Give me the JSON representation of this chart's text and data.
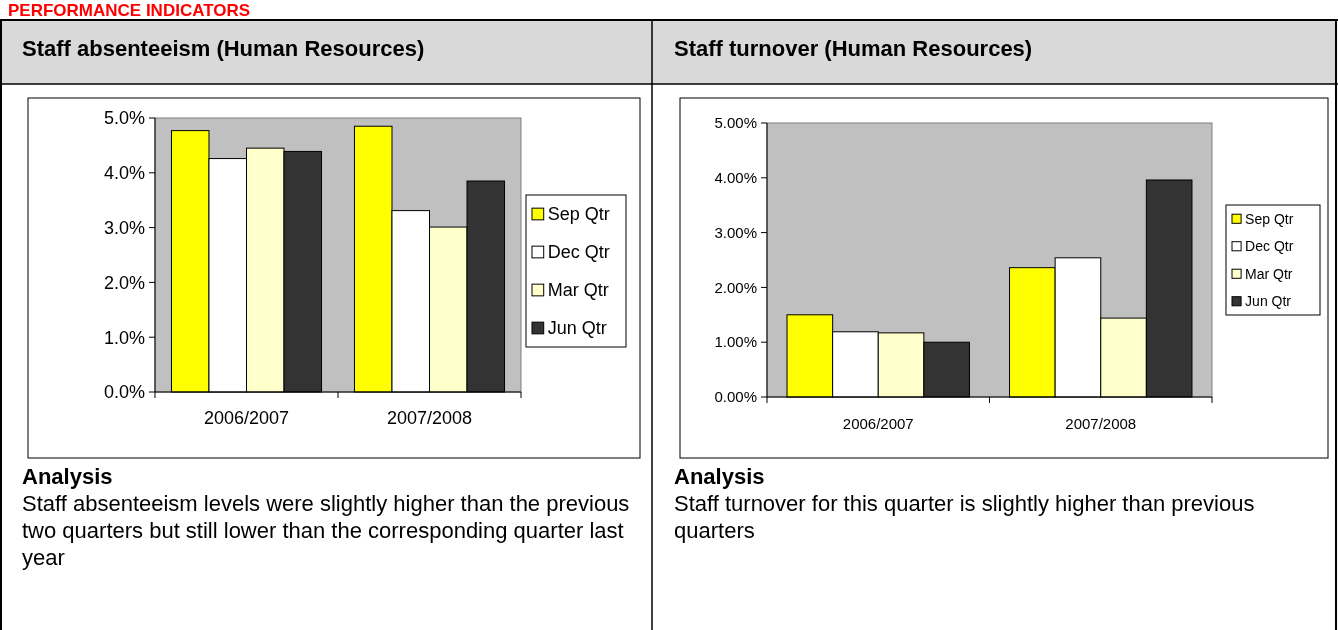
{
  "chart_data": [
    {
      "type": "bar",
      "title": "Staff absenteeism (Human Resources)",
      "categories": [
        "2006/2007",
        "2007/2008"
      ],
      "series": [
        {
          "name": "Sep Qtr",
          "color": "#ffff00",
          "values": [
            4.77,
            4.85
          ]
        },
        {
          "name": "Dec Qtr",
          "color": "#ffffff",
          "values": [
            4.26,
            3.31
          ]
        },
        {
          "name": "Mar Qtr",
          "color": "#ffffcc",
          "values": [
            4.45,
            3.01
          ]
        },
        {
          "name": "Jun Qtr",
          "color": "#333333",
          "values": [
            4.39,
            3.85
          ]
        }
      ],
      "ylim": [
        0,
        5
      ],
      "yticks": [
        {
          "value": 0,
          "label": "0.0%"
        },
        {
          "value": 1,
          "label": "1.0%"
        },
        {
          "value": 2,
          "label": "2.0%"
        },
        {
          "value": 3,
          "label": "3.0%"
        },
        {
          "value": 4,
          "label": "4.0%"
        },
        {
          "value": 5,
          "label": "5.0%"
        }
      ],
      "grid": false,
      "legend": "right",
      "annotations": [
        "PERFORMANCE INDICATORS",
        "Analysis",
        "Staff absenteeism levels were slightly higher than the previous two quarters but still lower than the corresponding quarter last year"
      ]
    },
    {
      "type": "bar",
      "title": "Staff turnover (Human Resources)",
      "categories": [
        "2006/2007",
        "2007/2008"
      ],
      "series": [
        {
          "name": "Sep Qtr",
          "color": "#ffff00",
          "values": [
            1.5,
            2.36
          ]
        },
        {
          "name": "Dec Qtr",
          "color": "#ffffff",
          "values": [
            1.19,
            2.54
          ]
        },
        {
          "name": "Mar Qtr",
          "color": "#ffffcc",
          "values": [
            1.17,
            1.44
          ]
        },
        {
          "name": "Jun Qtr",
          "color": "#333333",
          "values": [
            1.0,
            3.96
          ]
        }
      ],
      "ylim": [
        0,
        5
      ],
      "yticks": [
        {
          "value": 0,
          "label": "0.00%"
        },
        {
          "value": 1,
          "label": "1.00%"
        },
        {
          "value": 2,
          "label": "2.00%"
        },
        {
          "value": 3,
          "label": "3.00%"
        },
        {
          "value": 4,
          "label": "4.00%"
        },
        {
          "value": 5,
          "label": "5.00%"
        }
      ],
      "grid": false,
      "legend": "right",
      "annotations": [
        "Analysis",
        "Staff turnover for this quarter is slightly higher than previous quarters"
      ]
    }
  ]
}
